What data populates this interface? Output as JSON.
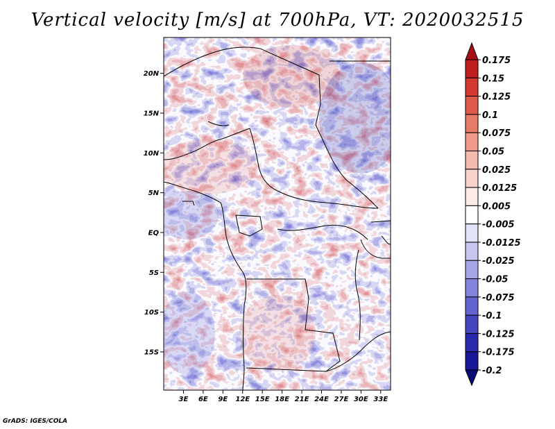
{
  "title": "Vertical velocity [m/s] at 700hPa, VT: 2020032515",
  "credit": "GrADS: IGES/COLA",
  "map": {
    "lat_labels": [
      "20N",
      "15N",
      "10N",
      "5N",
      "EQ",
      "5S",
      "10S",
      "15S"
    ],
    "lat_values": [
      20,
      15,
      10,
      5,
      0,
      -5,
      -10,
      -15
    ],
    "lon_labels": [
      "3E",
      "6E",
      "9E",
      "12E",
      "15E",
      "18E",
      "21E",
      "24E",
      "27E",
      "30E",
      "33E"
    ],
    "lon_values": [
      3,
      6,
      9,
      12,
      15,
      18,
      21,
      24,
      27,
      30,
      33
    ],
    "lon_range": [
      0,
      34.5
    ],
    "lat_range": [
      -19.8,
      24.5
    ]
  },
  "colorbar": {
    "labels": [
      "0.175",
      "0.15",
      "0.125",
      "0.1",
      "0.075",
      "0.05",
      "0.025",
      "0.0125",
      "0.005",
      "-0.005",
      "-0.0125",
      "-0.025",
      "-0.05",
      "-0.075",
      "-0.1",
      "-0.125",
      "-0.175",
      "-0.2"
    ],
    "colors": [
      "#a50f15",
      "#be1e1e",
      "#d23a32",
      "#e05a4a",
      "#e87a68",
      "#ef9a8a",
      "#f4b8ad",
      "#f8d3cc",
      "#fcebe8",
      "#ffffff",
      "#e2e2f8",
      "#c6c6f0",
      "#a6a6e8",
      "#8484dc",
      "#6464d0",
      "#4646bf",
      "#2a2aaa",
      "#161696",
      "#0a0a78"
    ]
  }
}
